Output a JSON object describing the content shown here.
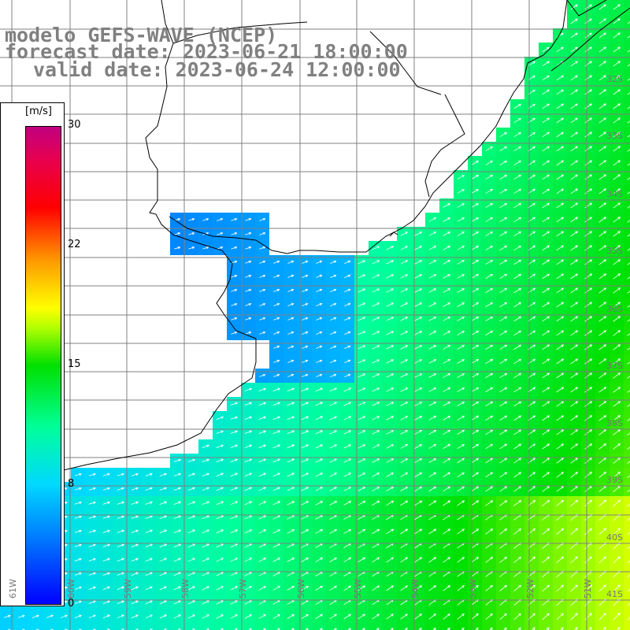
{
  "title": {
    "line1": "modelo GEFS-WAVE (NCEP)",
    "line2": "forecast date: 2023-06-21 18:00:00",
    "line3": "valid date: 2023-06-24 12:00:00"
  },
  "colorbar": {
    "unit": "[m/s]",
    "ticks": [
      {
        "value": "30"
      },
      {
        "value": "22"
      },
      {
        "value": "15"
      },
      {
        "value": "8"
      },
      {
        "value": "0"
      }
    ],
    "min": 0,
    "max": 30
  },
  "map": {
    "lat_labels": [
      "32S",
      "33S",
      "34S",
      "35S",
      "36S",
      "37S",
      "38S",
      "39S",
      "40S",
      "41S"
    ],
    "lon_labels": [
      "61W",
      "60W",
      "59W",
      "58W",
      "57W",
      "56W",
      "55W",
      "54W",
      "53W",
      "52W",
      "51W"
    ],
    "colors": {
      "land": "#ffffff",
      "grid": "#808080",
      "coast": "#000000",
      "arrow": "#ffffff"
    }
  }
}
